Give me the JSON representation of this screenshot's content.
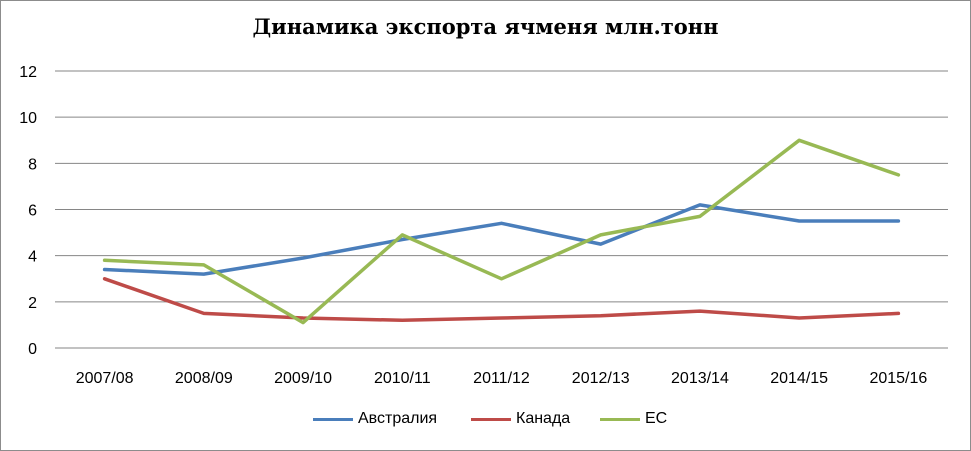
{
  "chart_data": {
    "type": "line",
    "title": "Динамика экспорта ячменя млн.тонн",
    "xlabel": "",
    "ylabel": "",
    "categories": [
      "2007/08",
      "2008/09",
      "2009/10",
      "2010/11",
      "2011/12",
      "2012/13",
      "2013/14",
      "2014/15",
      "2015/16"
    ],
    "ylim": [
      0,
      12
    ],
    "yticks": [
      0,
      2,
      4,
      6,
      8,
      10,
      12
    ],
    "grid": true,
    "legend_position": "bottom",
    "series": [
      {
        "name": "Австралия",
        "color": "#4a7ebb",
        "values": [
          3.4,
          3.2,
          3.9,
          4.7,
          5.4,
          4.5,
          6.2,
          5.5,
          5.5
        ]
      },
      {
        "name": "Канада",
        "color": "#be4b48",
        "values": [
          3.0,
          1.5,
          1.3,
          1.2,
          1.3,
          1.4,
          1.6,
          1.3,
          1.5
        ]
      },
      {
        "name": "ЕС",
        "color": "#98b954",
        "values": [
          3.8,
          3.6,
          1.1,
          4.9,
          3.0,
          4.9,
          5.7,
          9.0,
          7.5
        ]
      }
    ]
  }
}
